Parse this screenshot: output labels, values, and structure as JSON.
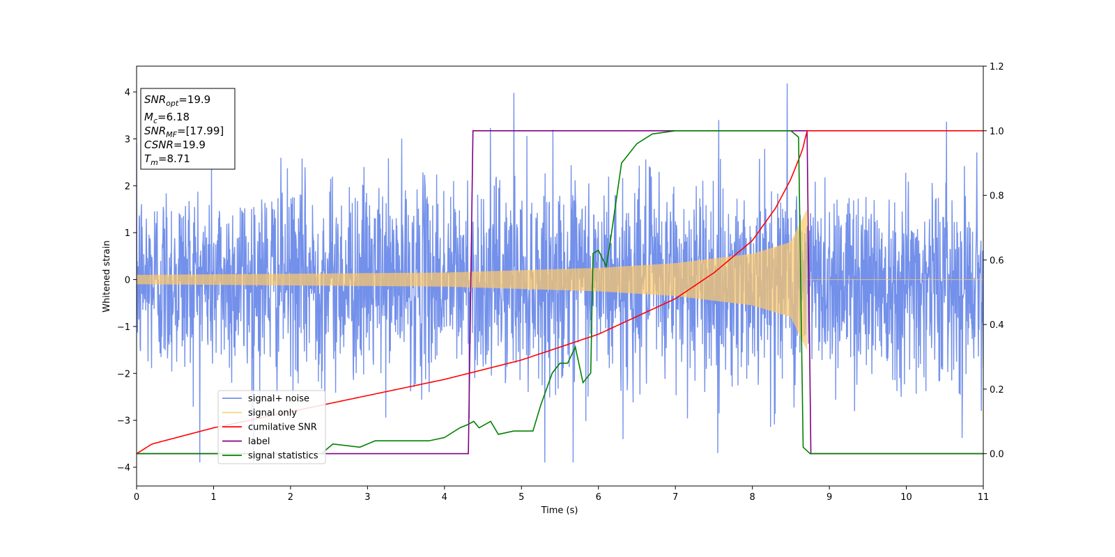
{
  "chart_data": {
    "type": "line",
    "xlabel": "Time (s)",
    "ylabel": "Whitened strain",
    "xlim": [
      0,
      11
    ],
    "ylim": [
      -4.4,
      4.55
    ],
    "y2lim": [
      -0.1,
      1.2
    ],
    "xticks": [
      "0",
      "1",
      "2",
      "3",
      "4",
      "5",
      "6",
      "7",
      "8",
      "9",
      "10",
      "11"
    ],
    "yticks": [
      "4",
      "3",
      "2",
      "1",
      "0",
      "−1",
      "−2",
      "−3",
      "−4"
    ],
    "y2ticks": [
      "1.2",
      "1.0",
      "0.8",
      "0.6",
      "0.4",
      "0.2",
      "0.0"
    ],
    "info_box": [
      {
        "base": "SNR",
        "sub": "opt",
        "value": "=19.9"
      },
      {
        "base": "M",
        "sub": "c",
        "value": "=6.18"
      },
      {
        "base": "SNR",
        "sub": "MF",
        "value": "=[17.99]"
      },
      {
        "base": "CSNR",
        "sub": "",
        "value": "=19.9"
      },
      {
        "base": "T",
        "sub": "m",
        "value": "=8.71"
      }
    ],
    "legend_position": "lower-left",
    "series": [
      {
        "name": "signal+ noise",
        "axis": "left",
        "color": "#5b7ce6",
        "description": "whitened noise plus signal, amplitude ~±2.5 with spikes up to ~4.2",
        "envelope": 2.4,
        "spikes": [
          [
            4.9,
            3.98
          ],
          [
            8.45,
            4.18
          ],
          [
            5.67,
            -3.98
          ],
          [
            6.32,
            -3.4
          ],
          [
            7.55,
            -3.7
          ],
          [
            1.5,
            -3.2
          ]
        ]
      },
      {
        "name": "signal only",
        "axis": "left",
        "color": "#ffc966",
        "description": "chirp with growing amplitude, merges at t=8.71",
        "amplitude_points": [
          [
            0,
            0.1
          ],
          [
            4,
            0.15
          ],
          [
            6,
            0.25
          ],
          [
            7,
            0.35
          ],
          [
            8,
            0.55
          ],
          [
            8.5,
            0.8
          ],
          [
            8.71,
            1.5
          ]
        ],
        "end_time": 8.71
      },
      {
        "name": "cumilative SNR",
        "axis": "right",
        "color": "#ff0000",
        "points": [
          [
            0,
            0.0
          ],
          [
            0.2,
            0.03
          ],
          [
            1,
            0.08
          ],
          [
            2,
            0.13
          ],
          [
            3,
            0.18
          ],
          [
            4,
            0.23
          ],
          [
            5,
            0.29
          ],
          [
            6,
            0.37
          ],
          [
            7,
            0.48
          ],
          [
            7.5,
            0.56
          ],
          [
            8,
            0.66
          ],
          [
            8.3,
            0.76
          ],
          [
            8.5,
            0.85
          ],
          [
            8.65,
            0.94
          ],
          [
            8.71,
            1.0
          ],
          [
            11,
            1.0
          ]
        ]
      },
      {
        "name": "label",
        "axis": "right",
        "color": "#800080",
        "points": [
          [
            0,
            0.0
          ],
          [
            4.31,
            0.0
          ],
          [
            4.37,
            1.0
          ],
          [
            8.71,
            1.0
          ],
          [
            8.76,
            0.0
          ],
          [
            11,
            0.0
          ]
        ]
      },
      {
        "name": "signal statistics",
        "axis": "right",
        "color": "#008000",
        "points": [
          [
            0,
            0.0
          ],
          [
            2.4,
            0.0
          ],
          [
            2.55,
            0.03
          ],
          [
            2.9,
            0.02
          ],
          [
            3.1,
            0.04
          ],
          [
            3.5,
            0.04
          ],
          [
            3.8,
            0.04
          ],
          [
            4.0,
            0.05
          ],
          [
            4.2,
            0.08
          ],
          [
            4.3,
            0.09
          ],
          [
            4.38,
            0.1
          ],
          [
            4.45,
            0.08
          ],
          [
            4.6,
            0.1
          ],
          [
            4.7,
            0.06
          ],
          [
            4.9,
            0.07
          ],
          [
            5.0,
            0.07
          ],
          [
            5.15,
            0.07
          ],
          [
            5.25,
            0.15
          ],
          [
            5.4,
            0.25
          ],
          [
            5.5,
            0.28
          ],
          [
            5.6,
            0.28
          ],
          [
            5.7,
            0.33
          ],
          [
            5.8,
            0.22
          ],
          [
            5.9,
            0.25
          ],
          [
            5.93,
            0.62
          ],
          [
            6.0,
            0.63
          ],
          [
            6.1,
            0.58
          ],
          [
            6.15,
            0.65
          ],
          [
            6.3,
            0.9
          ],
          [
            6.5,
            0.96
          ],
          [
            6.7,
            0.99
          ],
          [
            7.0,
            1.0
          ],
          [
            7.5,
            1.0
          ],
          [
            8.0,
            1.0
          ],
          [
            8.5,
            1.0
          ],
          [
            8.6,
            0.98
          ],
          [
            8.66,
            0.02
          ],
          [
            8.75,
            0.0
          ],
          [
            11,
            0.0
          ]
        ]
      }
    ]
  }
}
